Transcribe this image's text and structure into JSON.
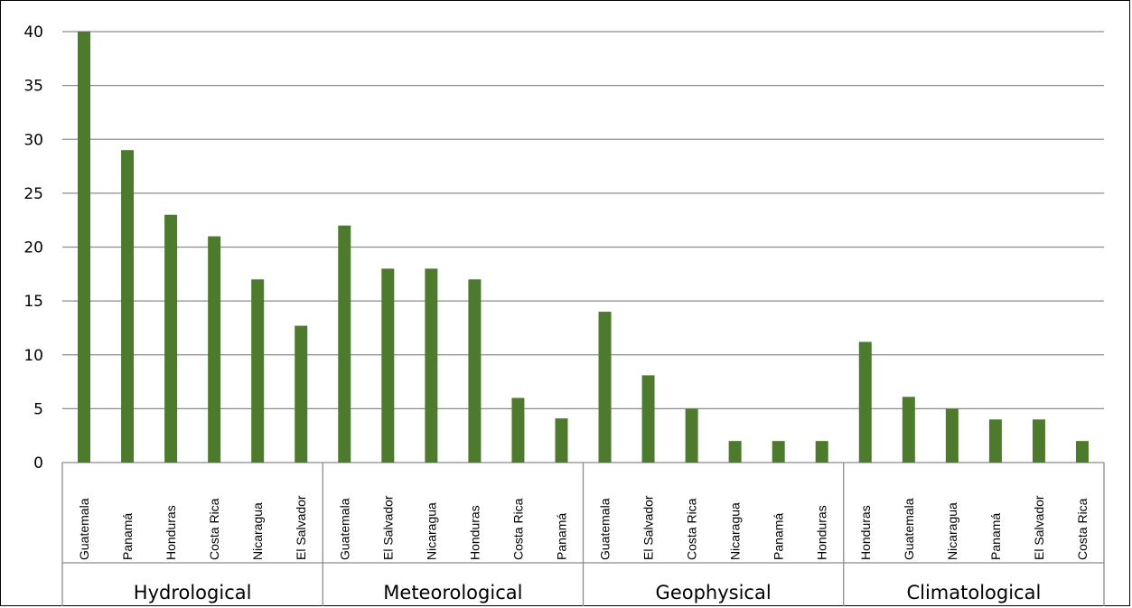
{
  "chart_data": {
    "type": "bar",
    "title": "",
    "xlabel": "",
    "ylabel": "",
    "ylim": [
      0,
      40
    ],
    "yticks": [
      0,
      5,
      10,
      15,
      20,
      25,
      30,
      35,
      40
    ],
    "grid": true,
    "bar_color": "#4e7a2e",
    "groups": [
      {
        "name": "Hydrological",
        "categories": [
          "Guatemala",
          "Panamá",
          "Honduras",
          "Costa Rica",
          "Nicaragua",
          "El Salvador"
        ],
        "values": [
          40,
          29,
          23,
          21,
          17,
          12.7
        ]
      },
      {
        "name": "Meteorological",
        "categories": [
          "Guatemala",
          "El Salvador",
          "Nicaragua",
          "Honduras",
          "Costa Rica",
          "Panamá"
        ],
        "values": [
          22,
          18,
          18,
          17,
          6,
          4.1
        ]
      },
      {
        "name": "Geophysical",
        "categories": [
          "Guatemala",
          "El Salvador",
          "Costa Rica",
          "Nicaragua",
          "Panamá",
          "Honduras"
        ],
        "values": [
          14,
          8.1,
          5,
          2,
          2,
          2
        ]
      },
      {
        "name": "Climatological",
        "categories": [
          "Honduras",
          "Guatemala",
          "Nicaragua",
          "Panamá",
          "El Salvador",
          "Costa Rica"
        ],
        "values": [
          11.2,
          6.1,
          5,
          4,
          4,
          2
        ]
      }
    ]
  }
}
